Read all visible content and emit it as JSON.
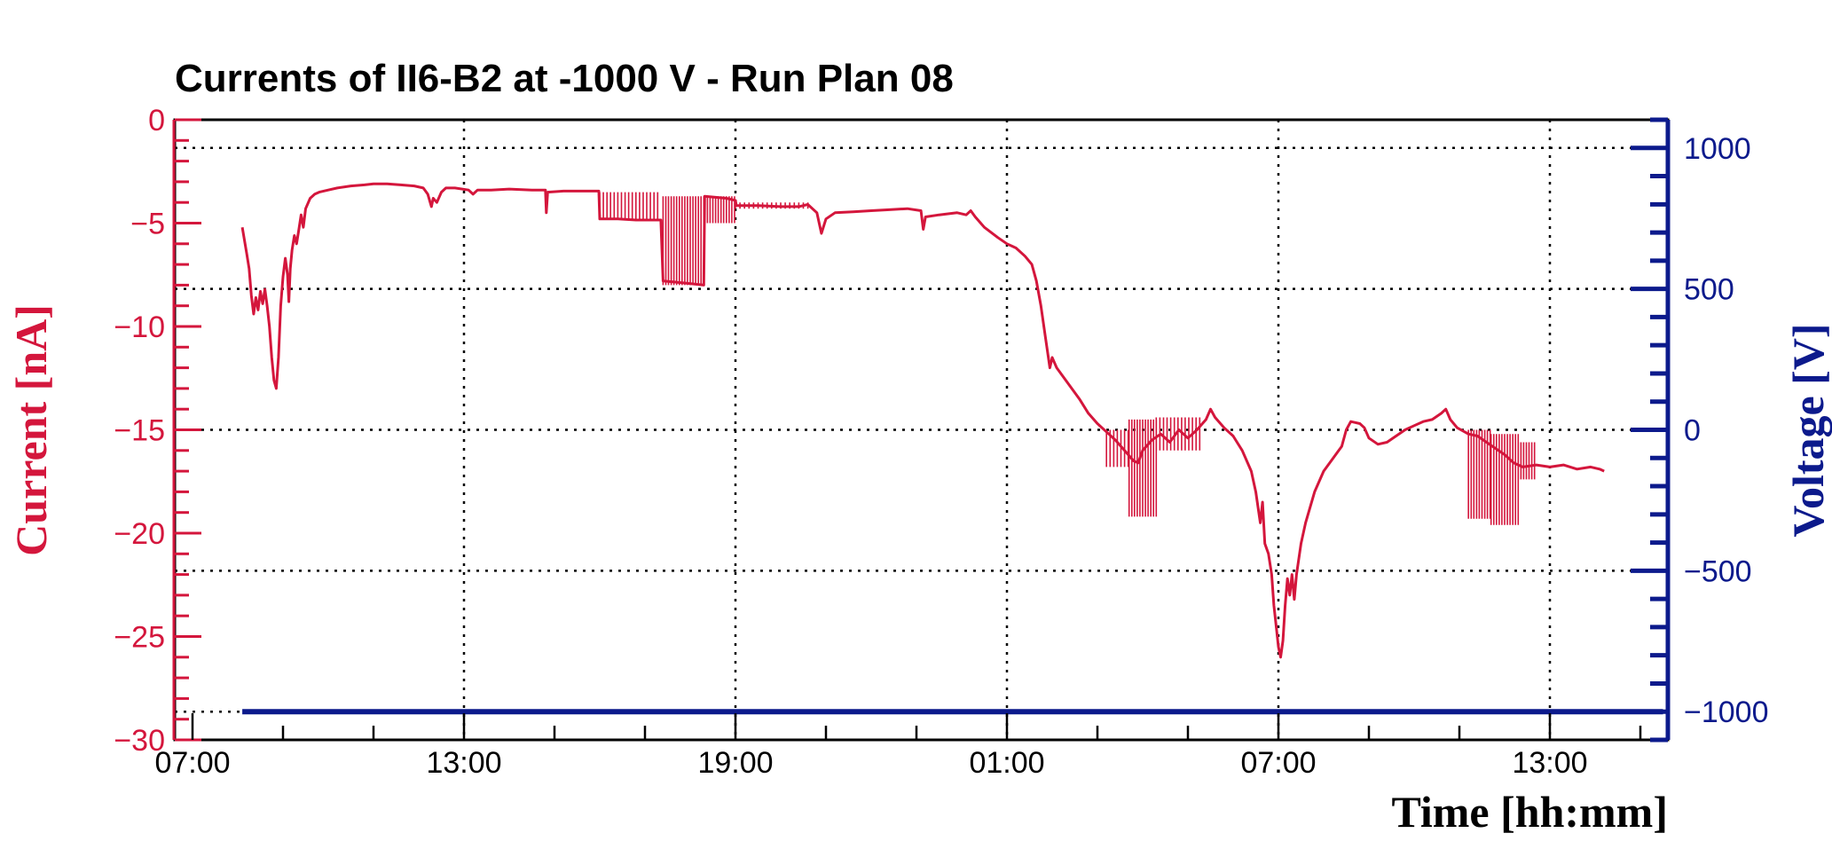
{
  "chart_data": {
    "type": "line",
    "title": "Currents of II6-B2 at -1000 V - Run Plan 08",
    "xlabel": "Time [hh:mm]",
    "ylabel_left": "Current [nA]",
    "ylabel_right": "Voltage [V]",
    "x_unit": "hours since 07:00 of day 1",
    "x_range_hours": [
      0,
      32.8
    ],
    "x_ticks": [
      {
        "h": 0,
        "label": "07:00"
      },
      {
        "h": 6,
        "label": "13:00"
      },
      {
        "h": 12,
        "label": "19:00"
      },
      {
        "h": 18,
        "label": "01:00"
      },
      {
        "h": 24,
        "label": "07:00"
      },
      {
        "h": 30,
        "label": "13:00"
      }
    ],
    "ylim_left": [
      -30,
      0
    ],
    "yticks_left": [
      "0",
      "−5",
      "−10",
      "−15",
      "−20",
      "−25",
      "−30"
    ],
    "ylim_right": [
      -1100,
      1100
    ],
    "yticks_right": [
      "1000",
      "500",
      "0",
      "−500",
      "−1000"
    ],
    "grid": true,
    "colors": {
      "current": "#d4163c",
      "voltage": "#0c1a8c",
      "grid": "#000000"
    },
    "series": [
      {
        "axis": "left",
        "points": [
          [
            1.1,
            -5.2
          ],
          [
            1.2,
            -6.5
          ],
          [
            1.25,
            -7.2
          ],
          [
            1.3,
            -8.5
          ],
          [
            1.35,
            -9.4
          ],
          [
            1.4,
            -8.6
          ],
          [
            1.45,
            -9.2
          ],
          [
            1.5,
            -8.3
          ],
          [
            1.55,
            -8.9
          ],
          [
            1.6,
            -8.2
          ],
          [
            1.65,
            -9.0
          ],
          [
            1.7,
            -10.0
          ],
          [
            1.75,
            -11.5
          ],
          [
            1.8,
            -12.6
          ],
          [
            1.85,
            -13.0
          ],
          [
            1.9,
            -11.5
          ],
          [
            1.95,
            -9.0
          ],
          [
            2.0,
            -7.6
          ],
          [
            2.05,
            -6.7
          ],
          [
            2.1,
            -7.5
          ],
          [
            2.13,
            -8.8
          ],
          [
            2.16,
            -7.2
          ],
          [
            2.2,
            -6.3
          ],
          [
            2.25,
            -5.6
          ],
          [
            2.3,
            -6.0
          ],
          [
            2.35,
            -5.3
          ],
          [
            2.4,
            -4.6
          ],
          [
            2.45,
            -5.2
          ],
          [
            2.5,
            -4.3
          ],
          [
            2.6,
            -3.8
          ],
          [
            2.7,
            -3.6
          ],
          [
            2.8,
            -3.5
          ],
          [
            3.0,
            -3.4
          ],
          [
            3.2,
            -3.3
          ],
          [
            3.5,
            -3.2
          ],
          [
            3.8,
            -3.15
          ],
          [
            4.0,
            -3.1
          ],
          [
            4.3,
            -3.1
          ],
          [
            4.6,
            -3.15
          ],
          [
            4.9,
            -3.2
          ],
          [
            5.1,
            -3.3
          ],
          [
            5.2,
            -3.6
          ],
          [
            5.28,
            -4.2
          ],
          [
            5.32,
            -3.8
          ],
          [
            5.4,
            -4.0
          ],
          [
            5.5,
            -3.5
          ],
          [
            5.6,
            -3.3
          ],
          [
            5.8,
            -3.3
          ],
          [
            6.1,
            -3.4
          ],
          [
            6.2,
            -3.6
          ],
          [
            6.3,
            -3.4
          ],
          [
            6.6,
            -3.4
          ],
          [
            7.0,
            -3.35
          ],
          [
            7.5,
            -3.4
          ],
          [
            7.8,
            -3.4
          ],
          [
            7.82,
            -4.5
          ],
          [
            7.85,
            -3.5
          ],
          [
            8.2,
            -3.45
          ],
          [
            8.6,
            -3.45
          ],
          [
            8.98,
            -3.45
          ],
          [
            9.0,
            -4.8
          ],
          [
            9.4,
            -4.8
          ],
          [
            9.8,
            -4.85
          ],
          [
            10.2,
            -4.85
          ],
          [
            10.35,
            -4.85
          ],
          [
            10.4,
            -7.8
          ],
          [
            10.9,
            -7.9
          ],
          [
            11.3,
            -8.0
          ],
          [
            11.32,
            -3.7
          ],
          [
            11.8,
            -3.8
          ],
          [
            12.0,
            -3.9
          ],
          [
            12.02,
            -4.15
          ],
          [
            12.5,
            -4.15
          ],
          [
            13.0,
            -4.2
          ],
          [
            13.4,
            -4.2
          ],
          [
            13.6,
            -4.1
          ],
          [
            13.8,
            -4.5
          ],
          [
            13.9,
            -5.5
          ],
          [
            14.0,
            -4.8
          ],
          [
            14.2,
            -4.5
          ],
          [
            14.6,
            -4.45
          ],
          [
            15.0,
            -4.4
          ],
          [
            15.4,
            -4.35
          ],
          [
            15.8,
            -4.3
          ],
          [
            16.1,
            -4.4
          ],
          [
            16.15,
            -5.3
          ],
          [
            16.2,
            -4.7
          ],
          [
            16.5,
            -4.6
          ],
          [
            16.9,
            -4.5
          ],
          [
            17.1,
            -4.6
          ],
          [
            17.2,
            -4.4
          ],
          [
            17.3,
            -4.7
          ],
          [
            17.5,
            -5.2
          ],
          [
            17.8,
            -5.7
          ],
          [
            18.0,
            -6.0
          ],
          [
            18.2,
            -6.2
          ],
          [
            18.4,
            -6.6
          ],
          [
            18.55,
            -7.0
          ],
          [
            18.65,
            -7.8
          ],
          [
            18.75,
            -9.0
          ],
          [
            18.85,
            -10.5
          ],
          [
            18.95,
            -12.0
          ],
          [
            19.0,
            -11.5
          ],
          [
            19.1,
            -12.0
          ],
          [
            19.2,
            -12.3
          ],
          [
            19.4,
            -12.9
          ],
          [
            19.6,
            -13.5
          ],
          [
            19.8,
            -14.2
          ],
          [
            20.0,
            -14.7
          ],
          [
            20.2,
            -15.1
          ],
          [
            20.4,
            -15.5
          ],
          [
            20.6,
            -16.0
          ],
          [
            20.8,
            -16.5
          ],
          [
            20.9,
            -16.6
          ],
          [
            21.0,
            -16.0
          ],
          [
            21.2,
            -15.5
          ],
          [
            21.4,
            -15.2
          ],
          [
            21.6,
            -15.6
          ],
          [
            21.8,
            -15.0
          ],
          [
            22.0,
            -15.4
          ],
          [
            22.2,
            -15.0
          ],
          [
            22.4,
            -14.5
          ],
          [
            22.5,
            -14.0
          ],
          [
            22.6,
            -14.4
          ],
          [
            22.8,
            -14.9
          ],
          [
            23.0,
            -15.3
          ],
          [
            23.2,
            -16.0
          ],
          [
            23.4,
            -17.0
          ],
          [
            23.5,
            -18.0
          ],
          [
            23.6,
            -19.5
          ],
          [
            23.65,
            -18.5
          ],
          [
            23.7,
            -20.5
          ],
          [
            23.78,
            -21.0
          ],
          [
            23.85,
            -22.0
          ],
          [
            23.9,
            -23.5
          ],
          [
            23.95,
            -24.5
          ],
          [
            24.0,
            -25.5
          ],
          [
            24.05,
            -26.0
          ],
          [
            24.1,
            -25.2
          ],
          [
            24.15,
            -23.5
          ],
          [
            24.2,
            -22.2
          ],
          [
            24.25,
            -23.0
          ],
          [
            24.3,
            -22.0
          ],
          [
            24.35,
            -23.2
          ],
          [
            24.4,
            -22.0
          ],
          [
            24.5,
            -20.5
          ],
          [
            24.6,
            -19.5
          ],
          [
            24.8,
            -18.0
          ],
          [
            25.0,
            -17.0
          ],
          [
            25.2,
            -16.4
          ],
          [
            25.4,
            -15.8
          ],
          [
            25.5,
            -15.0
          ],
          [
            25.6,
            -14.6
          ],
          [
            25.8,
            -14.7
          ],
          [
            25.9,
            -14.9
          ],
          [
            26.0,
            -15.4
          ],
          [
            26.2,
            -15.7
          ],
          [
            26.4,
            -15.6
          ],
          [
            26.6,
            -15.3
          ],
          [
            26.8,
            -15.0
          ],
          [
            27.0,
            -14.8
          ],
          [
            27.2,
            -14.6
          ],
          [
            27.4,
            -14.5
          ],
          [
            27.6,
            -14.2
          ],
          [
            27.7,
            -14.0
          ],
          [
            27.8,
            -14.5
          ],
          [
            27.95,
            -14.9
          ],
          [
            28.2,
            -15.2
          ],
          [
            28.4,
            -15.3
          ],
          [
            28.6,
            -15.6
          ],
          [
            28.8,
            -15.9
          ],
          [
            29.0,
            -16.2
          ],
          [
            29.2,
            -16.6
          ],
          [
            29.4,
            -16.8
          ],
          [
            29.7,
            -16.7
          ],
          [
            30.0,
            -16.8
          ],
          [
            30.3,
            -16.7
          ],
          [
            30.6,
            -16.9
          ],
          [
            30.9,
            -16.8
          ],
          [
            31.1,
            -16.9
          ],
          [
            31.2,
            -17.0
          ]
        ]
      },
      {
        "axis": "right",
        "points": [
          [
            1.1,
            -1000
          ],
          [
            32.5,
            -1000
          ]
        ]
      }
    ],
    "spike_bands": [
      {
        "x0": 9.0,
        "x1": 10.35,
        "low": -4.85,
        "high": -3.5,
        "step": 0.08
      },
      {
        "x0": 10.4,
        "x1": 11.3,
        "low": -8.0,
        "high": -3.7,
        "step": 0.06
      },
      {
        "x0": 11.32,
        "x1": 12.0,
        "low": -5.0,
        "high": -3.7,
        "step": 0.06
      },
      {
        "x0": 12.0,
        "x1": 13.6,
        "low": -4.3,
        "high": -4.0,
        "step": 0.1
      },
      {
        "x0": 20.2,
        "x1": 20.7,
        "low": -16.8,
        "high": -15.0,
        "step": 0.08
      },
      {
        "x0": 20.7,
        "x1": 21.3,
        "low": -19.2,
        "high": -14.5,
        "step": 0.06
      },
      {
        "x0": 21.3,
        "x1": 22.3,
        "low": -16.0,
        "high": -14.4,
        "step": 0.08
      },
      {
        "x0": 28.2,
        "x1": 28.7,
        "low": -19.3,
        "high": -15.0,
        "step": 0.06
      },
      {
        "x0": 28.7,
        "x1": 29.3,
        "low": -19.6,
        "high": -15.2,
        "step": 0.06
      },
      {
        "x0": 29.3,
        "x1": 29.7,
        "low": -17.4,
        "high": -15.6,
        "step": 0.06
      }
    ]
  }
}
